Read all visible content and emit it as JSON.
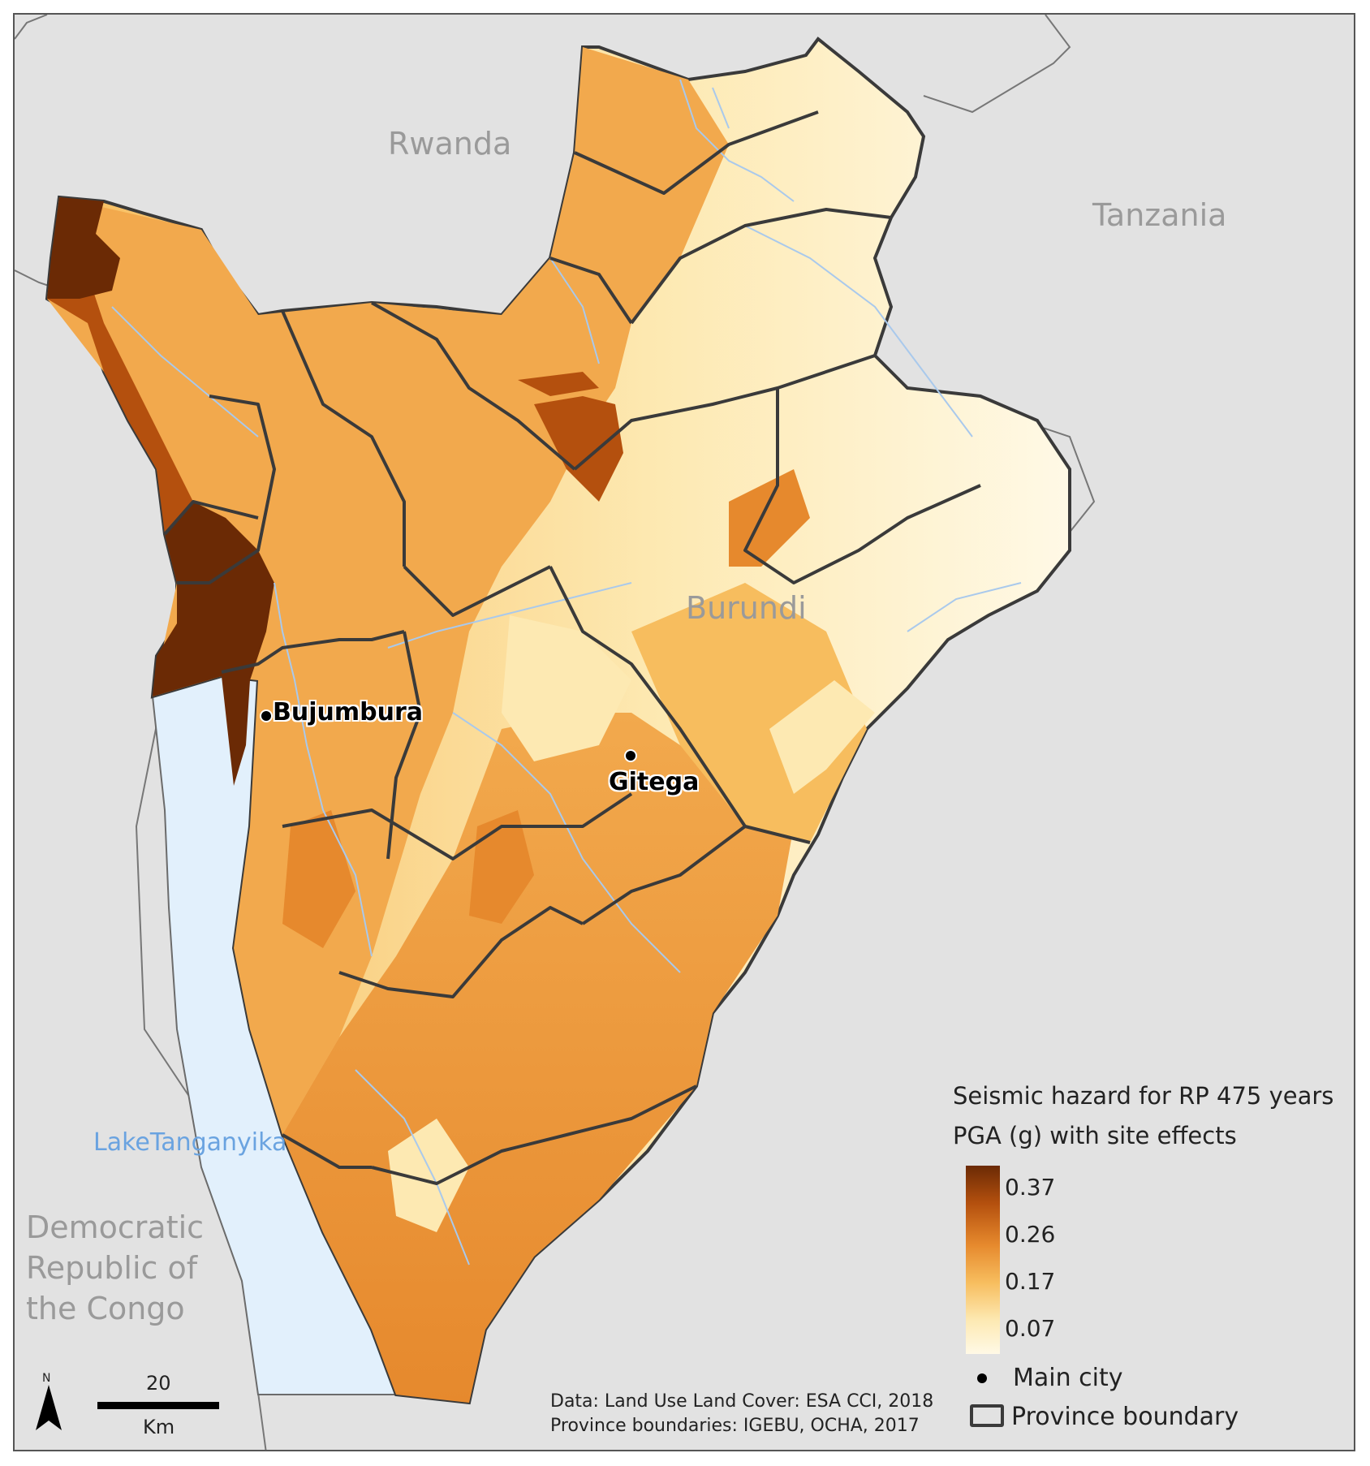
{
  "map": {
    "countries": {
      "rwanda": "Rwanda",
      "tanzania": "Tanzania",
      "burundi": "Burundi",
      "drc_line1": "Democratic",
      "drc_line2": "Republic of",
      "drc_line3": "the Congo"
    },
    "water": {
      "lake": "LakeTanganyika"
    },
    "cities": [
      {
        "name": "Bujumbura"
      },
      {
        "name": "Gitega"
      }
    ]
  },
  "legend": {
    "title_line1": "Seismic hazard for RP 475 years",
    "title_line2": "PGA (g) with site effects",
    "ticks": [
      "0.37",
      "0.26",
      "0.17",
      "0.07"
    ],
    "ramp_colors": [
      "#6b2a05",
      "#b4500e",
      "#e6892d",
      "#f7bd5e",
      "#fde9b2",
      "#fff9e6"
    ],
    "main_city": "Main city",
    "province_boundary": "Province boundary"
  },
  "scale_bar": {
    "value": "20",
    "unit": "Km"
  },
  "north_arrow": {
    "letter": "N",
    "icon": "north-arrow-icon"
  },
  "credits": {
    "line1": "Data: Land Use Land Cover: ESA CCI, 2018",
    "line2": "Province boundaries: IGEBU, OCHA, 2017"
  },
  "colors": {
    "background": "#e2e2e2",
    "water": "#e2f0fc",
    "river": "#a9c9ec",
    "boundary": "#3a3a3a"
  }
}
